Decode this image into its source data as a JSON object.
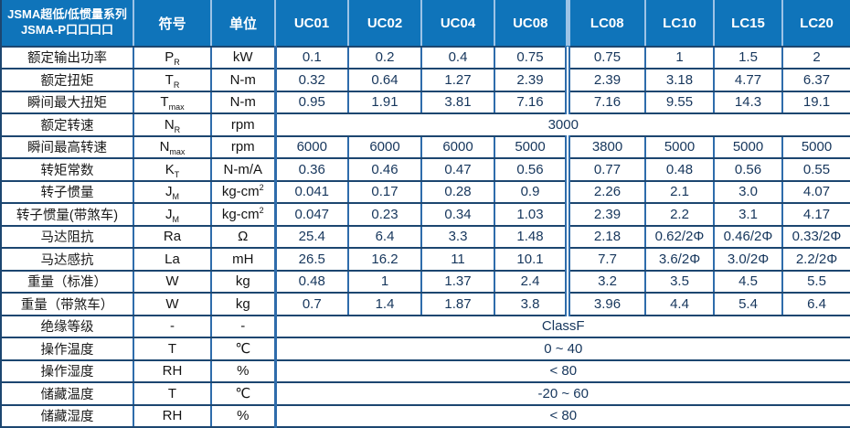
{
  "header": {
    "series_title_line1": "JSMA超低/低惯量系列",
    "series_title_line2": "JSMA-P口口口口",
    "symbol_col": "符号",
    "unit_col": "单位",
    "models": [
      "UC01",
      "UC02",
      "UC04",
      "UC08",
      "LC08",
      "LC10",
      "LC15",
      "LC20"
    ]
  },
  "colors": {
    "header_bg": "#0f74ba",
    "header_divider": "#9dc3e6",
    "row_border": "#1c4670",
    "col_border": "#2e6cab",
    "value_text": "#16365c",
    "label_text": "#1a1a1a"
  },
  "rows": [
    {
      "label": "额定输出功率",
      "sym": "P",
      "sym_sub": "R",
      "unit": "kW",
      "unit_sup": "",
      "values": [
        "0.1",
        "0.2",
        "0.4",
        "0.75",
        "0.75",
        "1",
        "1.5",
        "2"
      ]
    },
    {
      "label": "额定扭矩",
      "sym": "T",
      "sym_sub": "R",
      "unit": "N-m",
      "unit_sup": "",
      "values": [
        "0.32",
        "0.64",
        "1.27",
        "2.39",
        "2.39",
        "3.18",
        "4.77",
        "6.37"
      ]
    },
    {
      "label": "瞬间最大扭矩",
      "sym": "T",
      "sym_sub": "max",
      "unit": "N-m",
      "unit_sup": "",
      "values": [
        "0.95",
        "1.91",
        "3.81",
        "7.16",
        "7.16",
        "9.55",
        "14.3",
        "19.1"
      ]
    },
    {
      "label": "额定转速",
      "sym": "N",
      "sym_sub": "R",
      "unit": "rpm",
      "unit_sup": "",
      "span_value": "3000"
    },
    {
      "label": "瞬间最高转速",
      "sym": "N",
      "sym_sub": "max",
      "unit": "rpm",
      "unit_sup": "",
      "values": [
        "6000",
        "6000",
        "6000",
        "5000",
        "3800",
        "5000",
        "5000",
        "5000"
      ]
    },
    {
      "label": "转矩常数",
      "sym": "K",
      "sym_sub": "T",
      "unit": "N-m/A",
      "unit_sup": "",
      "values": [
        "0.36",
        "0.46",
        "0.47",
        "0.56",
        "0.77",
        "0.48",
        "0.56",
        "0.55"
      ]
    },
    {
      "label": "转子惯量",
      "sym": "J",
      "sym_sub": "M",
      "unit": "kg-cm",
      "unit_sup": "2",
      "values": [
        "0.041",
        "0.17",
        "0.28",
        "0.9",
        "2.26",
        "2.1",
        "3.0",
        "4.07"
      ]
    },
    {
      "label": "转子惯量(带煞车)",
      "sym": "J",
      "sym_sub": "M",
      "unit": "kg-cm",
      "unit_sup": "2",
      "values": [
        "0.047",
        "0.23",
        "0.34",
        "1.03",
        "2.39",
        "2.2",
        "3.1",
        "4.17"
      ]
    },
    {
      "label": "马达阻抗",
      "sym": "Ra",
      "sym_sub": "",
      "unit": "Ω",
      "unit_sup": "",
      "values": [
        "25.4",
        "6.4",
        "3.3",
        "1.48",
        "2.18",
        "0.62/2Φ",
        "0.46/2Φ",
        "0.33/2Φ"
      ]
    },
    {
      "label": "马达感抗",
      "sym": "La",
      "sym_sub": "",
      "unit": "mH",
      "unit_sup": "",
      "values": [
        "26.5",
        "16.2",
        "11",
        "10.1",
        "7.7",
        "3.6/2Φ",
        "3.0/2Φ",
        "2.2/2Φ"
      ]
    },
    {
      "label": "重量（标准）",
      "sym": "W",
      "sym_sub": "",
      "unit": "kg",
      "unit_sup": "",
      "values": [
        "0.48",
        "1",
        "1.37",
        "2.4",
        "3.2",
        "3.5",
        "4.5",
        "5.5"
      ]
    },
    {
      "label": "重量（带煞车）",
      "sym": "W",
      "sym_sub": "",
      "unit": "kg",
      "unit_sup": "",
      "values": [
        "0.7",
        "1.4",
        "1.87",
        "3.8",
        "3.96",
        "4.4",
        "5.4",
        "6.4"
      ]
    },
    {
      "label": "绝缘等级",
      "sym": "-",
      "sym_sub": "",
      "unit": "-",
      "unit_sup": "",
      "span_value": "ClassF"
    },
    {
      "label": "操作温度",
      "sym": "T",
      "sym_sub": "",
      "unit": "℃",
      "unit_sup": "",
      "span_value": "0 ~ 40"
    },
    {
      "label": "操作湿度",
      "sym": "RH",
      "sym_sub": "",
      "unit": "%",
      "unit_sup": "",
      "span_value": "< 80"
    },
    {
      "label": "储藏温度",
      "sym": "T",
      "sym_sub": "",
      "unit": "℃",
      "unit_sup": "",
      "span_value": "-20 ~ 60"
    },
    {
      "label": "储藏湿度",
      "sym": "RH",
      "sym_sub": "",
      "unit": "%",
      "unit_sup": "",
      "span_value": "< 80"
    }
  ]
}
